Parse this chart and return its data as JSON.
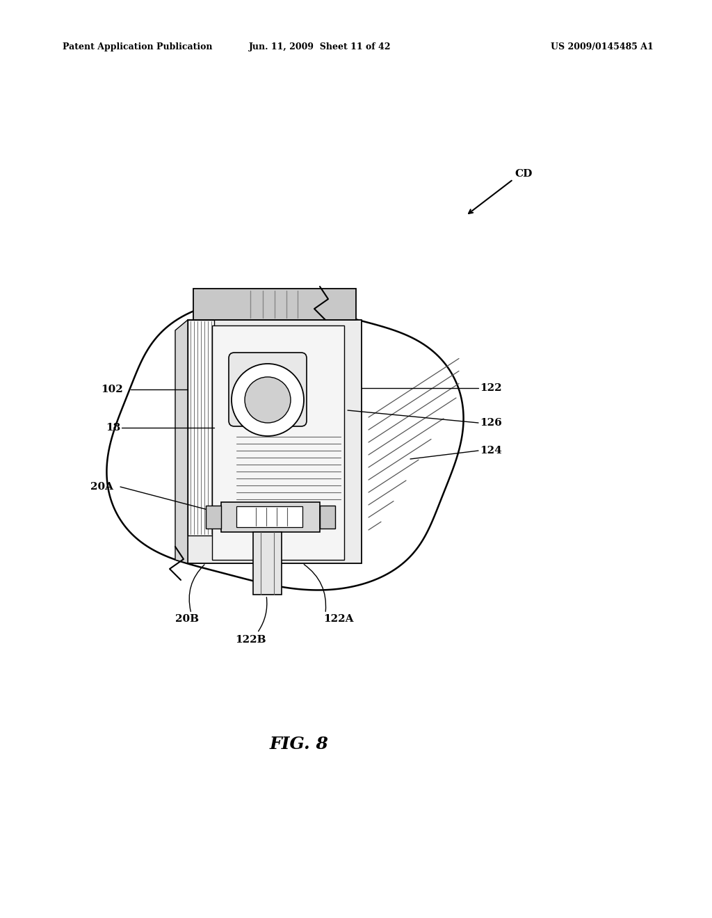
{
  "background_color": "#ffffff",
  "header_left": "Patent Application Publication",
  "header_mid": "Jun. 11, 2009  Sheet 11 of 42",
  "header_right": "US 2009/0145485 A1",
  "fig_label": "FIG. 8",
  "cd_label": "CD"
}
